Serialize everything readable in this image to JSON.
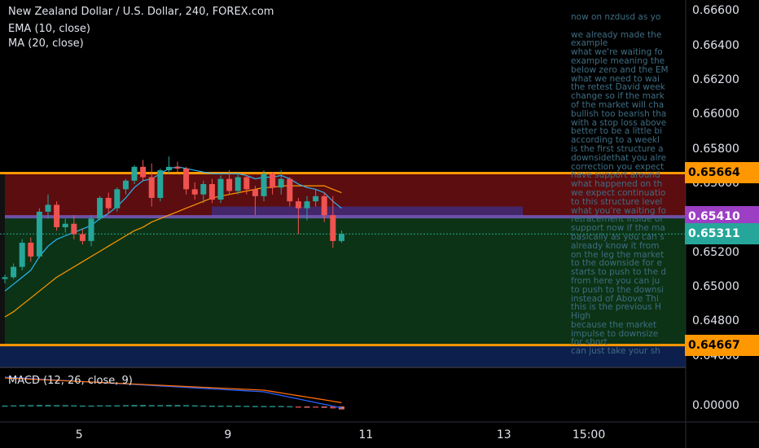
{
  "chart_data": {
    "type": "candlestick",
    "title": "New Zealand Dollar / U.S. Dollar, 240, FOREX.com",
    "indicators": [
      "EMA (10, close)",
      "MA (20, close)"
    ],
    "macd_label": "MACD (12, 26, close, 9)",
    "ylim": [
      0.6458,
      0.6662
    ],
    "y_ticks": [
      "0.66600",
      "0.66400",
      "0.66200",
      "0.66000",
      "0.65800",
      "0.65600",
      "0.65200",
      "0.65000",
      "0.64800",
      "0.64600"
    ],
    "macd_ticks": [
      "0.00000"
    ],
    "x_ticks": [
      {
        "label": "5",
        "pos": 7
      },
      {
        "label": "9",
        "pos": 21
      },
      {
        "label": "11",
        "pos": 34
      },
      {
        "label": "13",
        "pos": 47
      },
      {
        "label": "15:00",
        "pos": 55
      }
    ],
    "candles": [
      [
        0.6505,
        0.65075,
        0.65025,
        0.6506
      ],
      [
        0.6506,
        0.6514,
        0.6505,
        0.6512
      ],
      [
        0.6512,
        0.6528,
        0.651,
        0.6526
      ],
      [
        0.6526,
        0.6529,
        0.6515,
        0.6518
      ],
      [
        0.6518,
        0.6546,
        0.6517,
        0.6544
      ],
      [
        0.6544,
        0.6554,
        0.654,
        0.6548
      ],
      [
        0.6548,
        0.655,
        0.6533,
        0.6535
      ],
      [
        0.6535,
        0.654,
        0.6532,
        0.6537
      ],
      [
        0.6537,
        0.6542,
        0.6528,
        0.6531
      ],
      [
        0.6531,
        0.6534,
        0.6525,
        0.6527
      ],
      [
        0.6527,
        0.6542,
        0.6524,
        0.654
      ],
      [
        0.654,
        0.6553,
        0.6539,
        0.6552
      ],
      [
        0.6552,
        0.6555,
        0.6543,
        0.6546
      ],
      [
        0.6546,
        0.6558,
        0.6544,
        0.6557
      ],
      [
        0.6557,
        0.6563,
        0.6554,
        0.6562
      ],
      [
        0.6562,
        0.6571,
        0.656,
        0.657
      ],
      [
        0.657,
        0.6574,
        0.6562,
        0.6564
      ],
      [
        0.6564,
        0.6572,
        0.6547,
        0.6552
      ],
      [
        0.6552,
        0.6569,
        0.655,
        0.6568
      ],
      [
        0.6568,
        0.6576,
        0.6566,
        0.657
      ],
      [
        0.657,
        0.6573,
        0.6567,
        0.6569
      ],
      [
        0.6569,
        0.657,
        0.6554,
        0.6557
      ],
      [
        0.6557,
        0.6561,
        0.6551,
        0.6554
      ],
      [
        0.6554,
        0.6562,
        0.6549,
        0.656
      ],
      [
        0.656,
        0.6563,
        0.6549,
        0.6551
      ],
      [
        0.6551,
        0.6565,
        0.6549,
        0.6563
      ],
      [
        0.6563,
        0.6568,
        0.6554,
        0.6556
      ],
      [
        0.6556,
        0.6566,
        0.6554,
        0.6564
      ],
      [
        0.6564,
        0.6565,
        0.6554,
        0.6557
      ],
      [
        0.6557,
        0.6559,
        0.6542,
        0.6553
      ],
      [
        0.6553,
        0.6568,
        0.655,
        0.6566
      ],
      [
        0.6566,
        0.6567,
        0.6554,
        0.6558
      ],
      [
        0.6558,
        0.6568,
        0.6554,
        0.6563
      ],
      [
        0.6563,
        0.6564,
        0.6547,
        0.655
      ],
      [
        0.655,
        0.6552,
        0.6531,
        0.6546
      ],
      [
        0.6546,
        0.6553,
        0.6539,
        0.655
      ],
      [
        0.655,
        0.6557,
        0.6547,
        0.6553
      ],
      [
        0.6553,
        0.6555,
        0.6538,
        0.6542
      ],
      [
        0.6542,
        0.6553,
        0.6523,
        0.6527
      ],
      [
        0.6527,
        0.6533,
        0.6526,
        0.65311
      ]
    ],
    "ema10": [
      0.6498,
      0.6502,
      0.6506,
      0.651,
      0.6518,
      0.6524,
      0.6528,
      0.653,
      0.6532,
      0.6534,
      0.6536,
      0.654,
      0.6543,
      0.6547,
      0.6552,
      0.6558,
      0.6562,
      0.6563,
      0.6566,
      0.6569,
      0.657,
      0.6569,
      0.6568,
      0.6567,
      0.6566,
      0.6566,
      0.6566,
      0.6566,
      0.6565,
      0.6563,
      0.6564,
      0.6564,
      0.6565,
      0.6563,
      0.656,
      0.6558,
      0.6557,
      0.6555,
      0.655,
      0.6546
    ],
    "ma20": [
      0.6483,
      0.6486,
      0.649,
      0.6494,
      0.6498,
      0.6502,
      0.6506,
      0.6509,
      0.6512,
      0.6515,
      0.6518,
      0.6521,
      0.6524,
      0.6527,
      0.653,
      0.6533,
      0.6535,
      0.6538,
      0.654,
      0.6542,
      0.6544,
      0.6546,
      0.6548,
      0.655,
      0.6552,
      0.6553,
      0.6554,
      0.6555,
      0.6556,
      0.6557,
      0.6558,
      0.6558,
      0.6559,
      0.6559,
      0.6559,
      0.6559,
      0.6559,
      0.6559,
      0.6557,
      0.6555
    ],
    "macd_hist": [
      0.3,
      0.35,
      0.4,
      0.4,
      0.45,
      0.45,
      0.4,
      0.4,
      0.35,
      0.3,
      0.3,
      0.35,
      0.35,
      0.35,
      0.4,
      0.45,
      0.45,
      0.4,
      0.4,
      0.45,
      0.45,
      0.4,
      0.35,
      0.3,
      0.25,
      0.25,
      0.25,
      0.25,
      0.2,
      0.15,
      0.15,
      0.15,
      0.15,
      0.1,
      -0.1,
      -0.2,
      -0.3,
      -0.4,
      -0.6,
      -0.9
    ],
    "zones": {
      "resistance_top": 0.65664,
      "resistance_bottom": 0.6541,
      "support_top": 0.6541,
      "support_bottom": 0.64667,
      "lower_band_bottom": 0.6458
    },
    "price_labels": [
      {
        "value": "0.65664",
        "bg": "#ff9800",
        "fg": "#000000",
        "price": 0.65664
      },
      {
        "value": "0.65410",
        "bg": "#9c3fc4",
        "fg": "#ffffff",
        "price": 0.6541
      },
      {
        "value": "0.65311",
        "bg": "#26a69a",
        "fg": "#ffffff",
        "price": 0.65311
      },
      {
        "value": "0.64667",
        "bg": "#ff9800",
        "fg": "#000000",
        "price": 0.64667
      }
    ],
    "colors": {
      "up": "#26a69a",
      "down": "#ef5350",
      "ema": "#29b6f6",
      "ma": "#ff9800",
      "resistance_zone": "#5c0d10",
      "support_zone": "#0c3315",
      "lower_band": "#0d1f4d",
      "purple_zone": "#3f2b7a",
      "level_line": "#ff9800"
    }
  },
  "note_lines": [
    "now on nzdusd as yo",
    "",
    "we already made the",
    "example",
    "what we're waiting fo",
    "example meaning the",
    "below zero and the EM",
    " what we need to wai",
    "the retest David week",
    "change so if the mark",
    "of the market will cha",
    "bullish too bearish tha",
    "with a stop loss above",
    "better to be a little bi",
    " according to a weekl",
    "is the first structure a",
    "downsidethat you alre",
    "correction you expect",
    "have support around",
    "what happened on th",
    "we expect continuatio",
    "to this structure level",
    "what you're waiting fo",
    "retracement inside of",
    "support now if the ma",
    "basically as you can s",
    "already know it from",
    "on the leg the market",
    " to the downside for e",
    "starts to push to the d",
    "from here you can ju",
    "to push to the downsi",
    "instead of  Above Thi",
    " this is the previous H",
    "High",
    " because the market",
    " impulse to downsize",
    "for short",
    "can just take your sh"
  ]
}
